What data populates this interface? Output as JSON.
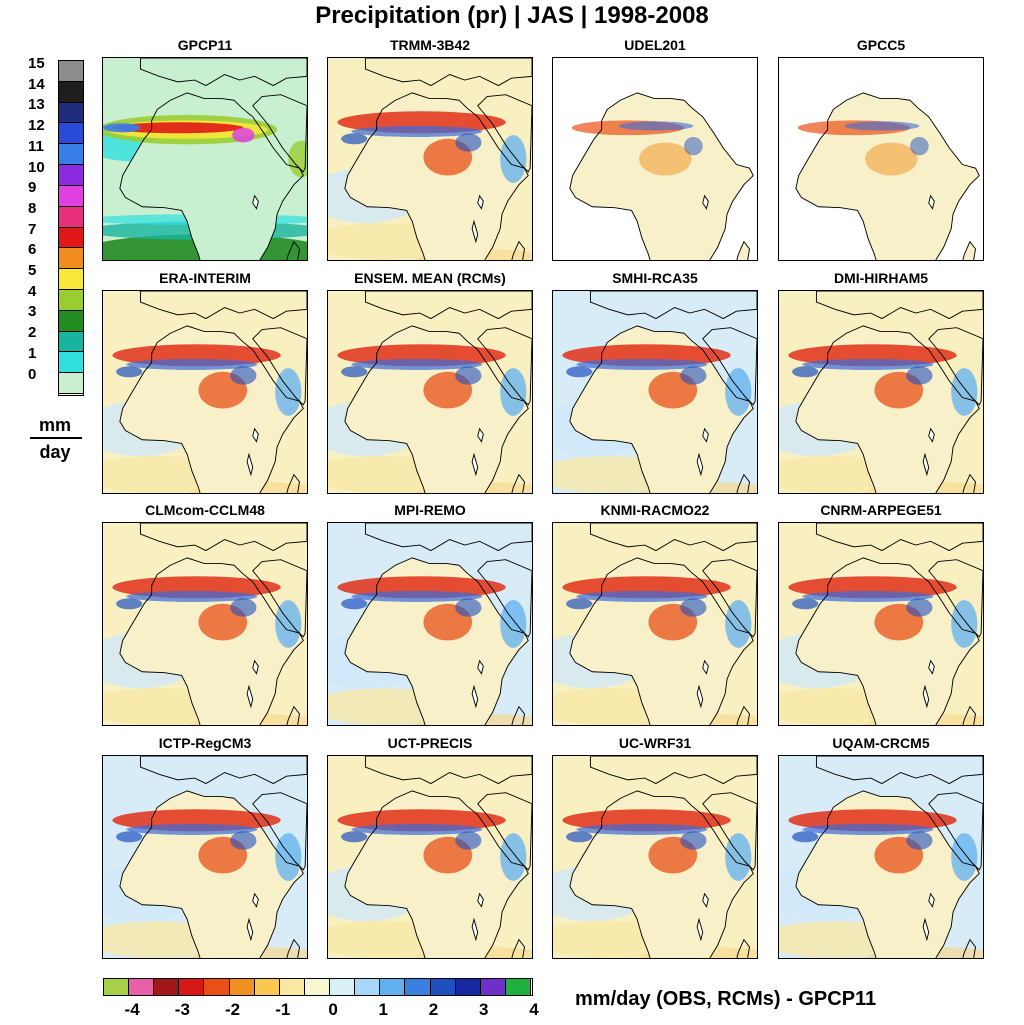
{
  "title": "Precipitation (pr) | JAS | 1998-2008",
  "abs_colorbar": {
    "ticks": [
      "15",
      "14",
      "13",
      "12",
      "11",
      "10",
      "9",
      "8",
      "7",
      "6",
      "5",
      "4",
      "3",
      "2",
      "1",
      "0"
    ],
    "colors": [
      "#8c8c8c",
      "#1e1e1e",
      "#1f2d7a",
      "#2a4ad8",
      "#3a7ee8",
      "#8a2be2",
      "#e040e0",
      "#e8307a",
      "#e01818",
      "#f08c1e",
      "#f8e83a",
      "#9acd32",
      "#228b22",
      "#18b4a0",
      "#30e0e0",
      "#c8f0d0"
    ],
    "unit_numerator": "mm",
    "unit_denominator": "day"
  },
  "diff_colorbar": {
    "ticks": [
      "-4",
      "-3",
      "-2",
      "-1",
      "0",
      "1",
      "2",
      "3",
      "4"
    ],
    "colors": [
      "#a8d048",
      "#e860a8",
      "#a01818",
      "#d81818",
      "#e85018",
      "#f09020",
      "#f8c850",
      "#f8e8a0",
      "#f8f8d0",
      "#d8f0f8",
      "#a8d8f8",
      "#60b0f0",
      "#3a80e0",
      "#2050c0",
      "#1828a0",
      "#7030c8",
      "#20b040"
    ],
    "label": "mm/day  (OBS, RCMs) - GPCP11"
  },
  "panels": [
    {
      "title": "GPCP11",
      "kind": "abs"
    },
    {
      "title": "TRMM-3B42",
      "kind": "diff"
    },
    {
      "title": "UDEL201",
      "kind": "land"
    },
    {
      "title": "GPCC5",
      "kind": "land"
    },
    {
      "title": "ERA-INTERIM",
      "kind": "diff"
    },
    {
      "title": "ENSEM. MEAN (RCMs)",
      "kind": "diff"
    },
    {
      "title": "SMHI-RCA35",
      "kind": "diff"
    },
    {
      "title": "DMI-HIRHAM5",
      "kind": "diff"
    },
    {
      "title": "CLMcom-CCLM48",
      "kind": "diff"
    },
    {
      "title": "MPI-REMO",
      "kind": "diff"
    },
    {
      "title": "KNMI-RACMO22",
      "kind": "diff"
    },
    {
      "title": "CNRM-ARPEGE51",
      "kind": "diff"
    },
    {
      "title": "ICTP-RegCM3",
      "kind": "diff"
    },
    {
      "title": "UCT-PRECIS",
      "kind": "diff"
    },
    {
      "title": "UC-WRF31",
      "kind": "diff"
    },
    {
      "title": "UQAM-CRCM5",
      "kind": "diff"
    }
  ]
}
